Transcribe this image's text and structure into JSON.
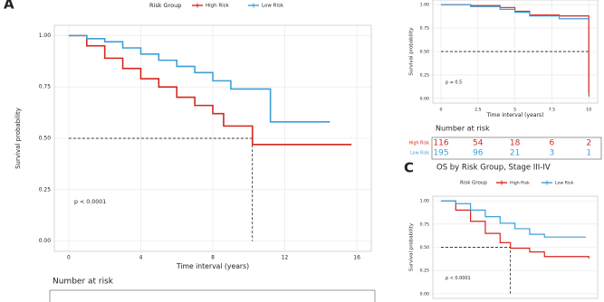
{
  "chart_data": [
    {
      "type": "km",
      "panel_label": "A",
      "legend_title": "Risk Group",
      "ylabel": "Survival probability",
      "xlabel": "Time interval (years)",
      "annotation": "p < 0.0001",
      "xlim": [
        -0.8,
        16.8
      ],
      "ylim": [
        -0.05,
        1.05
      ],
      "xticks": [
        0,
        4,
        8,
        12,
        16
      ],
      "yticks": [
        {
          "value": 0,
          "label": "0.00"
        },
        {
          "value": 0.25,
          "label": "0.25"
        },
        {
          "value": 0.5,
          "label": "0.50"
        },
        {
          "value": 0.75,
          "label": "0.75"
        },
        {
          "value": 1,
          "label": "1.00"
        }
      ],
      "grid": true,
      "median_time": 10.2,
      "risk_table_title": "Number at risk",
      "series": [
        {
          "name": "High Risk",
          "color": "#d7261e",
          "x": [
            0,
            1,
            2,
            3,
            4,
            5,
            6,
            7,
            8,
            8.6,
            10.2,
            15.7
          ],
          "values": [
            1.0,
            0.95,
            0.89,
            0.84,
            0.79,
            0.75,
            0.7,
            0.66,
            0.62,
            0.56,
            0.47,
            0.47
          ]
        },
        {
          "name": "Low Risk",
          "color": "#3f9fd8",
          "x": [
            0,
            1,
            2,
            3,
            4,
            5,
            6,
            7,
            8,
            9,
            11.2,
            14.5
          ],
          "values": [
            1.0,
            0.985,
            0.97,
            0.94,
            0.91,
            0.88,
            0.85,
            0.82,
            0.78,
            0.74,
            0.58,
            0.58
          ]
        }
      ]
    },
    {
      "type": "km",
      "ylabel": "Survival probability",
      "xlabel": "Time interval (years)",
      "annotation": "p = 0.5",
      "xlim": [
        -0.55,
        10.6
      ],
      "ylim": [
        -0.05,
        1.05
      ],
      "xticks": [
        0,
        2.5,
        5,
        7.5,
        10
      ],
      "yticks": [
        {
          "value": 0,
          "label": "0.00"
        },
        {
          "value": 0.25,
          "label": "0.25"
        },
        {
          "value": 0.5,
          "label": "0.50"
        },
        {
          "value": 0.75,
          "label": "0.75"
        },
        {
          "value": 1,
          "label": "1.00"
        }
      ],
      "grid": true,
      "median_time": 10,
      "risk_table_title": "Number at risk",
      "series": [
        {
          "name": "High Risk",
          "color": "#d7261e",
          "x": [
            0,
            2,
            4,
            5,
            6,
            8,
            10
          ],
          "values": [
            1.0,
            0.99,
            0.97,
            0.93,
            0.89,
            0.88,
            0.05
          ],
          "risk_counts": [
            116,
            54,
            18,
            6,
            2
          ]
        },
        {
          "name": "Low Risk",
          "color": "#3f9fd8",
          "x": [
            0,
            2,
            4,
            5,
            6,
            8,
            10
          ],
          "values": [
            1.0,
            0.98,
            0.95,
            0.92,
            0.88,
            0.85,
            0.85
          ],
          "risk_counts": [
            195,
            96,
            21,
            3,
            1
          ]
        }
      ]
    },
    {
      "type": "km",
      "panel_label": "C",
      "title": "OS by Risk Group, Stage III-IV",
      "legend_title": "Risk Group",
      "ylabel": "Survival probability",
      "annotation": "p < 0.0001",
      "xlim": [
        -0.55,
        10.6
      ],
      "ylim": [
        -0.05,
        1.05
      ],
      "yticks": [
        {
          "value": 0,
          "label": "0.00"
        },
        {
          "value": 0.25,
          "label": "0.25"
        },
        {
          "value": 0.5,
          "label": "0.50"
        },
        {
          "value": 0.75,
          "label": "0.75"
        },
        {
          "value": 1,
          "label": "1.00"
        }
      ],
      "grid": true,
      "median_time": 4.7,
      "series": [
        {
          "name": "High Risk",
          "color": "#d7261e",
          "x": [
            0,
            1,
            2,
            3,
            4,
            4.7,
            6,
            7,
            10
          ],
          "values": [
            1.0,
            0.9,
            0.78,
            0.65,
            0.55,
            0.49,
            0.45,
            0.4,
            0.38
          ]
        },
        {
          "name": "Low Risk",
          "color": "#3f9fd8",
          "x": [
            0,
            1,
            2,
            3,
            4,
            5,
            6,
            7,
            9.8
          ],
          "values": [
            1.0,
            0.97,
            0.9,
            0.83,
            0.76,
            0.7,
            0.64,
            0.61,
            0.61
          ]
        }
      ]
    }
  ]
}
